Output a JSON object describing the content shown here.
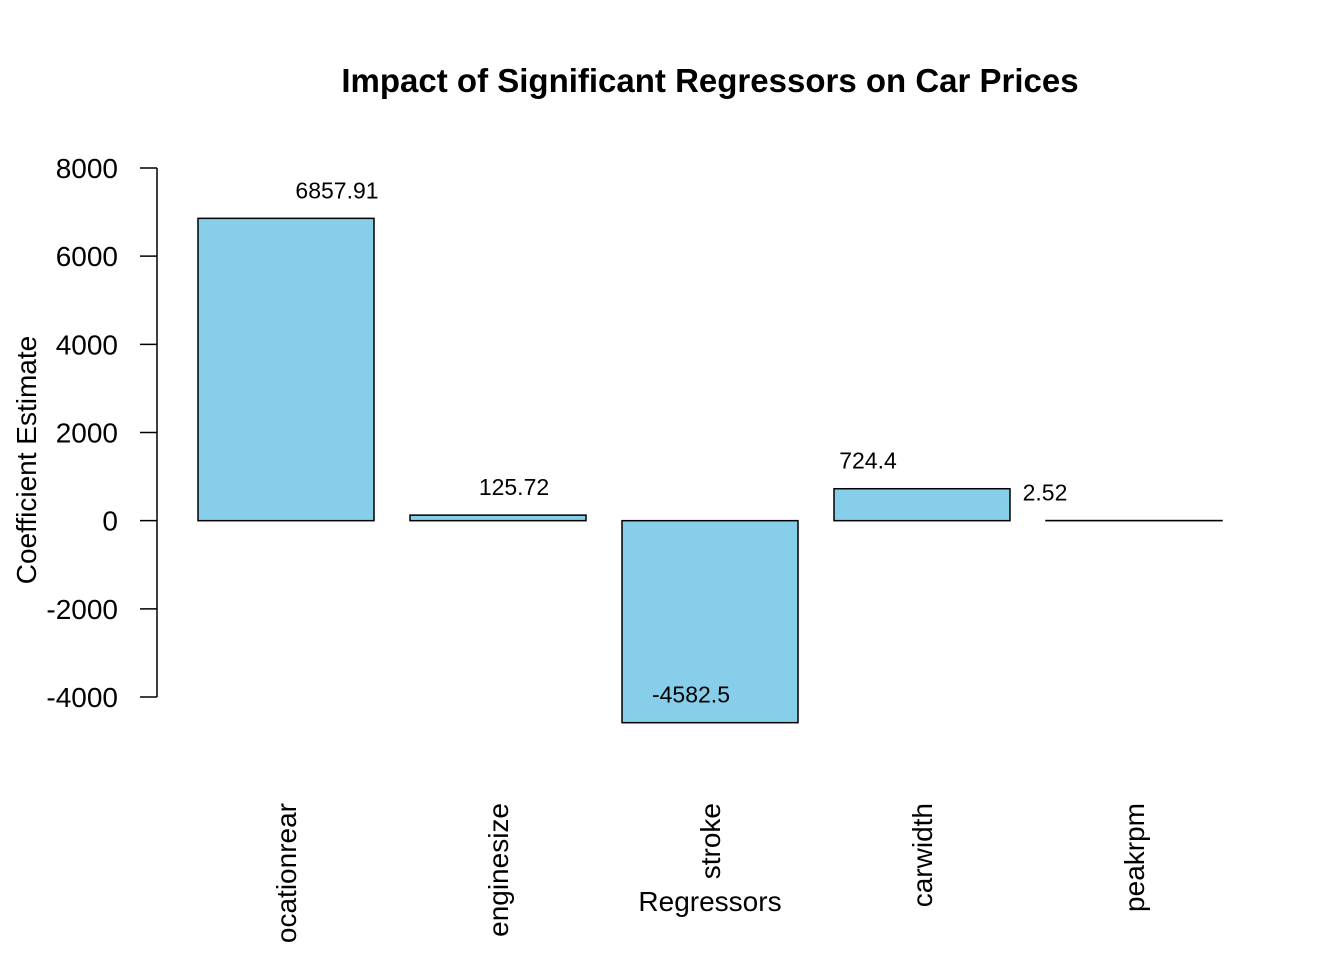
{
  "chart_data": {
    "type": "bar",
    "title": "Impact of Significant Regressors on Car Prices",
    "x_label": "Regressors",
    "y_label": "Coefficient Estimate",
    "categories": [
      "ocationrear",
      "enginesize",
      "stroke",
      "carwidth",
      "peakrpm"
    ],
    "values": [
      6857.91,
      125.72,
      -4582.5,
      724.4,
      2.52
    ],
    "color": "#87ceeb",
    "ylim": [
      -4000,
      8000
    ],
    "yticks": [
      -4000,
      -2000,
      0,
      2000,
      4000,
      6000,
      8000
    ]
  }
}
